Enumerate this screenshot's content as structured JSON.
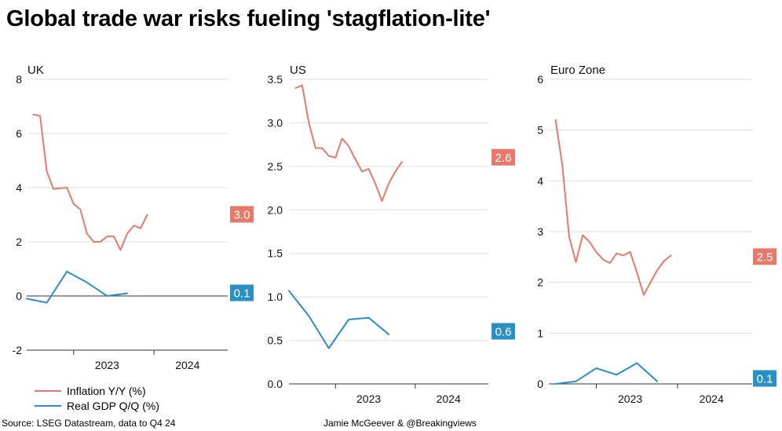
{
  "title": "Global trade war risks fueling 'stagflation-lite'",
  "source": "Source: LSEG Datastream, data to Q4 24",
  "credit": "Jamie McGeever & @Breakingviews",
  "colors": {
    "inflation": "#e8796a",
    "gdp": "#2a8fc4",
    "grid": "#dddddd",
    "axis": "#333333"
  },
  "legend": [
    {
      "label": "Inflation Y/Y (%)",
      "color": "#e8796a"
    },
    {
      "label": "Real GDP Q/Q (%)",
      "color": "#2a8fc4"
    }
  ],
  "chart_data": [
    {
      "type": "line",
      "title": "UK",
      "x_type": "month",
      "xlim": [
        "2022-06",
        "2024-12"
      ],
      "x_ticks": [
        {
          "label": "2023",
          "x": "2023-06"
        },
        {
          "label": "2024",
          "x": "2024-06"
        }
      ],
      "ylim": [
        -2,
        8
      ],
      "y_ticks": [
        "-2",
        "0",
        "2",
        "4",
        "6",
        "8"
      ],
      "grid": true,
      "series": [
        {
          "name": "Inflation Y/Y (%)",
          "color": "#e8796a",
          "end_label": "3.0",
          "points": [
            [
              "2022-07",
              6.7
            ],
            [
              "2022-08",
              6.65
            ],
            [
              "2022-09",
              4.6
            ],
            [
              "2022-10",
              3.95
            ],
            [
              "2022-11",
              3.98
            ],
            [
              "2022-12",
              4.0
            ],
            [
              "2023-01",
              3.4
            ],
            [
              "2023-02",
              3.2
            ],
            [
              "2023-03",
              2.3
            ],
            [
              "2023-04",
              2.0
            ],
            [
              "2023-05",
              2.0
            ],
            [
              "2023-06",
              2.2
            ],
            [
              "2023-07",
              2.2
            ],
            [
              "2023-08",
              1.7
            ],
            [
              "2023-09",
              2.3
            ],
            [
              "2023-10",
              2.6
            ],
            [
              "2023-11",
              2.5
            ],
            [
              "2023-12",
              3.0
            ]
          ]
        },
        {
          "name": "Real GDP Q/Q (%)",
          "color": "#2a8fc4",
          "end_label": "0.1",
          "points": [
            [
              "2022-06",
              -0.1
            ],
            [
              "2022-09",
              -0.25
            ],
            [
              "2022-12",
              0.9
            ],
            [
              "2023-03",
              0.5
            ],
            [
              "2023-06",
              0.0
            ],
            [
              "2023-09",
              0.1
            ]
          ]
        }
      ]
    },
    {
      "type": "line",
      "title": "US",
      "x_type": "month",
      "xlim": [
        "2022-06",
        "2024-12"
      ],
      "x_ticks": [
        {
          "label": "2023",
          "x": "2023-06"
        },
        {
          "label": "2024",
          "x": "2024-06"
        }
      ],
      "ylim": [
        0,
        3.5
      ],
      "y_ticks": [
        "0.0",
        "0.5",
        "1.0",
        "1.5",
        "2.0",
        "2.5",
        "3.0",
        "3.5"
      ],
      "grid": true,
      "series": [
        {
          "name": "Inflation Y/Y (%)",
          "color": "#e8796a",
          "end_label": "2.6",
          "points": [
            [
              "2022-07",
              3.4
            ],
            [
              "2022-08",
              3.43
            ],
            [
              "2022-09",
              3.0
            ],
            [
              "2022-10",
              2.71
            ],
            [
              "2022-11",
              2.71
            ],
            [
              "2022-12",
              2.62
            ],
            [
              "2023-01",
              2.6
            ],
            [
              "2023-02",
              2.82
            ],
            [
              "2023-03",
              2.73
            ],
            [
              "2023-04",
              2.58
            ],
            [
              "2023-05",
              2.44
            ],
            [
              "2023-06",
              2.47
            ],
            [
              "2023-07",
              2.3
            ],
            [
              "2023-08",
              2.1
            ],
            [
              "2023-09",
              2.3
            ],
            [
              "2023-10",
              2.44
            ],
            [
              "2023-11",
              2.55
            ]
          ]
        },
        {
          "name": "Real GDP Q/Q (%)",
          "color": "#2a8fc4",
          "end_label": "0.6",
          "points": [
            [
              "2022-06",
              1.07
            ],
            [
              "2022-09",
              0.78
            ],
            [
              "2022-12",
              0.41
            ],
            [
              "2023-03",
              0.74
            ],
            [
              "2023-06",
              0.76
            ],
            [
              "2023-09",
              0.57
            ]
          ]
        }
      ]
    },
    {
      "type": "line",
      "title": "Euro Zone",
      "x_type": "month",
      "xlim": [
        "2022-06",
        "2024-12"
      ],
      "x_ticks": [
        {
          "label": "2023",
          "x": "2023-06"
        },
        {
          "label": "2024",
          "x": "2024-06"
        }
      ],
      "ylim": [
        0,
        6
      ],
      "y_ticks": [
        "0",
        "1",
        "2",
        "3",
        "4",
        "5",
        "6"
      ],
      "grid": true,
      "series": [
        {
          "name": "Inflation Y/Y (%)",
          "color": "#e8796a",
          "end_label": "2.5",
          "points": [
            [
              "2022-07",
              5.2
            ],
            [
              "2022-08",
              4.3
            ],
            [
              "2022-09",
              2.9
            ],
            [
              "2022-10",
              2.4
            ],
            [
              "2022-11",
              2.93
            ],
            [
              "2022-12",
              2.8
            ],
            [
              "2023-01",
              2.6
            ],
            [
              "2023-02",
              2.45
            ],
            [
              "2023-03",
              2.38
            ],
            [
              "2023-04",
              2.57
            ],
            [
              "2023-05",
              2.53
            ],
            [
              "2023-06",
              2.6
            ],
            [
              "2023-07",
              2.2
            ],
            [
              "2023-08",
              1.75
            ],
            [
              "2023-09",
              2.0
            ],
            [
              "2023-10",
              2.24
            ],
            [
              "2023-11",
              2.42
            ],
            [
              "2023-12",
              2.53
            ]
          ]
        },
        {
          "name": "Real GDP Q/Q (%)",
          "color": "#2a8fc4",
          "end_label": "0.1",
          "points": [
            [
              "2022-07",
              0.0
            ],
            [
              "2022-10",
              0.05
            ],
            [
              "2023-01",
              0.31
            ],
            [
              "2023-04",
              0.18
            ],
            [
              "2023-07",
              0.41
            ],
            [
              "2023-10",
              0.05
            ]
          ]
        }
      ]
    }
  ]
}
